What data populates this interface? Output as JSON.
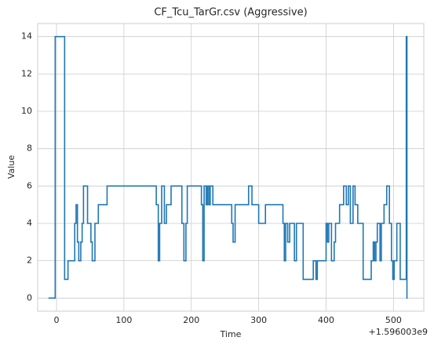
{
  "chart_data": {
    "type": "step",
    "title": "CF_Tcu_TarGr.csv (Aggressive)",
    "x_label": "Time",
    "y_label": "Value",
    "x_offset_label": "+1.596003e9",
    "series": [
      {
        "name": "Value",
        "color": "#1f77b4"
      }
    ],
    "x": [
      -12,
      -2,
      12,
      17,
      27,
      29,
      31,
      33,
      36,
      38,
      40,
      46,
      51,
      53,
      57,
      62,
      75,
      148,
      151,
      153,
      156,
      160,
      163,
      170,
      186,
      189,
      192,
      194,
      215,
      217,
      219,
      222,
      224,
      226,
      228,
      232,
      260,
      262,
      265,
      285,
      290,
      300,
      310,
      336,
      338,
      340,
      343,
      346,
      353,
      356,
      366,
      381,
      385,
      387,
      400,
      402,
      404,
      408,
      412,
      414,
      420,
      426,
      430,
      433,
      436,
      440,
      443,
      447,
      455,
      467,
      470,
      472,
      474,
      476,
      480,
      482,
      486,
      490,
      494,
      497,
      499,
      501,
      505,
      510,
      519,
      520,
      521
    ],
    "values": [
      0,
      14,
      1,
      2,
      4,
      5,
      3,
      2,
      3,
      4,
      6,
      4,
      3,
      2,
      4,
      5,
      6,
      5,
      2,
      4,
      6,
      4,
      5,
      6,
      4,
      2,
      4,
      6,
      5,
      2,
      6,
      5,
      6,
      5,
      6,
      5,
      4,
      3,
      5,
      6,
      5,
      4,
      5,
      4,
      2,
      4,
      3,
      4,
      2,
      4,
      1,
      2,
      1,
      2,
      4,
      3,
      4,
      2,
      3,
      4,
      5,
      6,
      5,
      6,
      4,
      6,
      5,
      4,
      1,
      2,
      3,
      2,
      3,
      4,
      2,
      4,
      5,
      6,
      4,
      2,
      1,
      2,
      4,
      1,
      14,
      0,
      0
    ],
    "xlim": [
      -28,
      545
    ],
    "ylim": [
      -0.7,
      14.7
    ],
    "xticks": [
      0,
      100,
      200,
      300,
      400,
      500
    ],
    "yticks": [
      0,
      2,
      4,
      6,
      8,
      10,
      12,
      14
    ],
    "grid": true
  }
}
